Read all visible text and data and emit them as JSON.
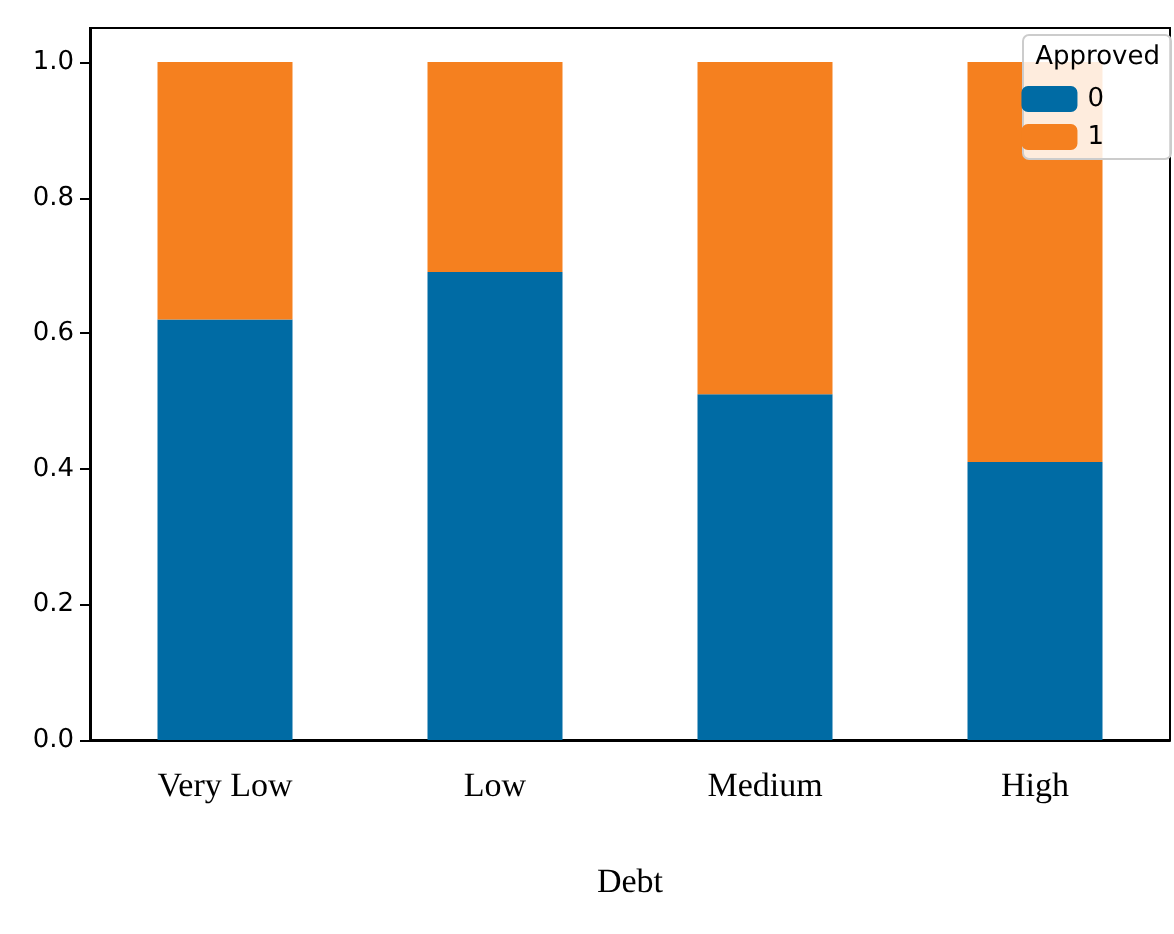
{
  "chart_data": {
    "type": "bar",
    "stacked": true,
    "xlabel": "Debt",
    "legend_title": "Approved",
    "categories": [
      "Very Low",
      "Low",
      "Medium",
      "High"
    ],
    "series": [
      {
        "name": "0",
        "color": "#006ba4",
        "values": [
          0.62,
          0.69,
          0.51,
          0.41
        ]
      },
      {
        "name": "1",
        "color": "#f5801f",
        "values": [
          0.38,
          0.31,
          0.49,
          0.59
        ]
      }
    ],
    "ylim": [
      0,
      1.05
    ],
    "yticks": [
      {
        "value": 0,
        "label": "0.0"
      },
      0.2,
      0.4,
      0.6,
      0.8,
      {
        "value": 1,
        "label": "1.0"
      }
    ],
    "grid": false,
    "legend": "top right"
  }
}
